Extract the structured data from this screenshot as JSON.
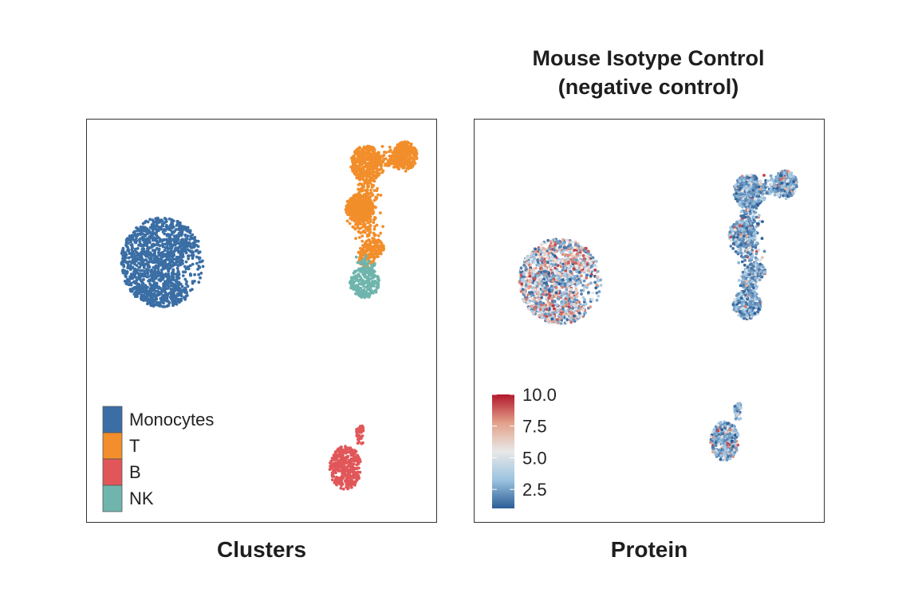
{
  "right_title": {
    "line1": "Mouse Isotype Control",
    "line2": "(negative control)"
  },
  "chart_data": [
    {
      "type": "scatter",
      "title": "Clusters",
      "xlabel": "",
      "ylabel": "",
      "legend": {
        "placement": "bottom-left",
        "entries": [
          {
            "label": "Monocytes",
            "color": "#3a6ea5"
          },
          {
            "label": "T",
            "color": "#f28e2b"
          },
          {
            "label": "B",
            "color": "#e15759"
          },
          {
            "label": "NK",
            "color": "#6fb5ad"
          }
        ]
      },
      "clusters": [
        {
          "name": "Monocytes",
          "cx": 0.22,
          "cy": 0.65,
          "rx": 0.12,
          "ry": 0.11,
          "n": 1400
        },
        {
          "name": "T",
          "shape": "branching",
          "cx": 0.8,
          "cy": 0.78,
          "n": 1400
        },
        {
          "name": "NK",
          "cx": 0.8,
          "cy": 0.59,
          "rx": 0.04,
          "ry": 0.035,
          "n": 220
        },
        {
          "name": "B",
          "cx": 0.74,
          "cy": 0.13,
          "rx": 0.045,
          "ry": 0.06,
          "n": 380
        }
      ]
    },
    {
      "type": "scatter",
      "title": "Protein",
      "xlabel": "",
      "ylabel": "",
      "colorbar": {
        "placement": "bottom-left",
        "min": 1.0,
        "max": 10.0,
        "ticks": [
          "10.0",
          "7.5",
          "5.0",
          "2.5"
        ],
        "colors": [
          "#2b5d96",
          "#9cc3e0",
          "#e8e8e8",
          "#e3a08a",
          "#b2182b"
        ]
      }
    }
  ],
  "captions": {
    "left": "Clusters",
    "right": "Protein"
  }
}
